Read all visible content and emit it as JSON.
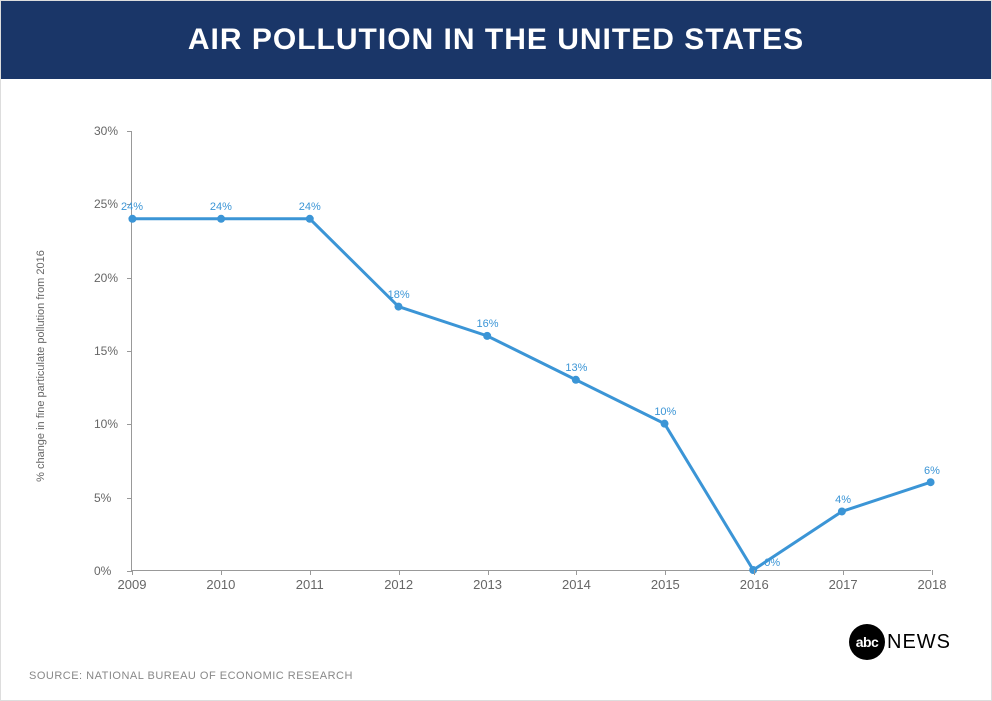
{
  "header": {
    "title": "AIR POLLUTION IN THE UNITED STATES",
    "background_color": "#1a3668",
    "text_color": "#ffffff",
    "title_fontsize": 30
  },
  "chart": {
    "type": "line",
    "ylabel": "% change in fine particulate pollution from 2016",
    "ylabel_fontsize": 11,
    "categories": [
      "2009",
      "2010",
      "2011",
      "2012",
      "2013",
      "2014",
      "2015",
      "2016",
      "2017",
      "2018"
    ],
    "values": [
      24,
      24,
      24,
      18,
      16,
      13,
      10,
      0,
      4,
      6
    ],
    "data_labels": [
      "24%",
      "24%",
      "24%",
      "18%",
      "16%",
      "13%",
      "10%",
      "0%",
      "4%",
      "6%"
    ],
    "ylim": [
      0,
      30
    ],
    "yticks": [
      0,
      5,
      10,
      15,
      20,
      25,
      30
    ],
    "ytick_labels": [
      "0%",
      "5%",
      "10%",
      "15%",
      "20%",
      "25%",
      "30%"
    ],
    "line_color": "#3b95d6",
    "line_width": 3,
    "marker_color": "#3b95d6",
    "marker_radius": 4,
    "data_label_color": "#3b95d6",
    "data_label_fontsize": 11,
    "axis_color": "#999999",
    "tick_label_color": "#666666",
    "background_color": "#ffffff"
  },
  "source": {
    "text": "SOURCE: NATIONAL BUREAU OF ECONOMIC RESEARCH",
    "fontsize": 11,
    "color": "#888888"
  },
  "logo": {
    "abc": "abc",
    "news": "NEWS"
  }
}
